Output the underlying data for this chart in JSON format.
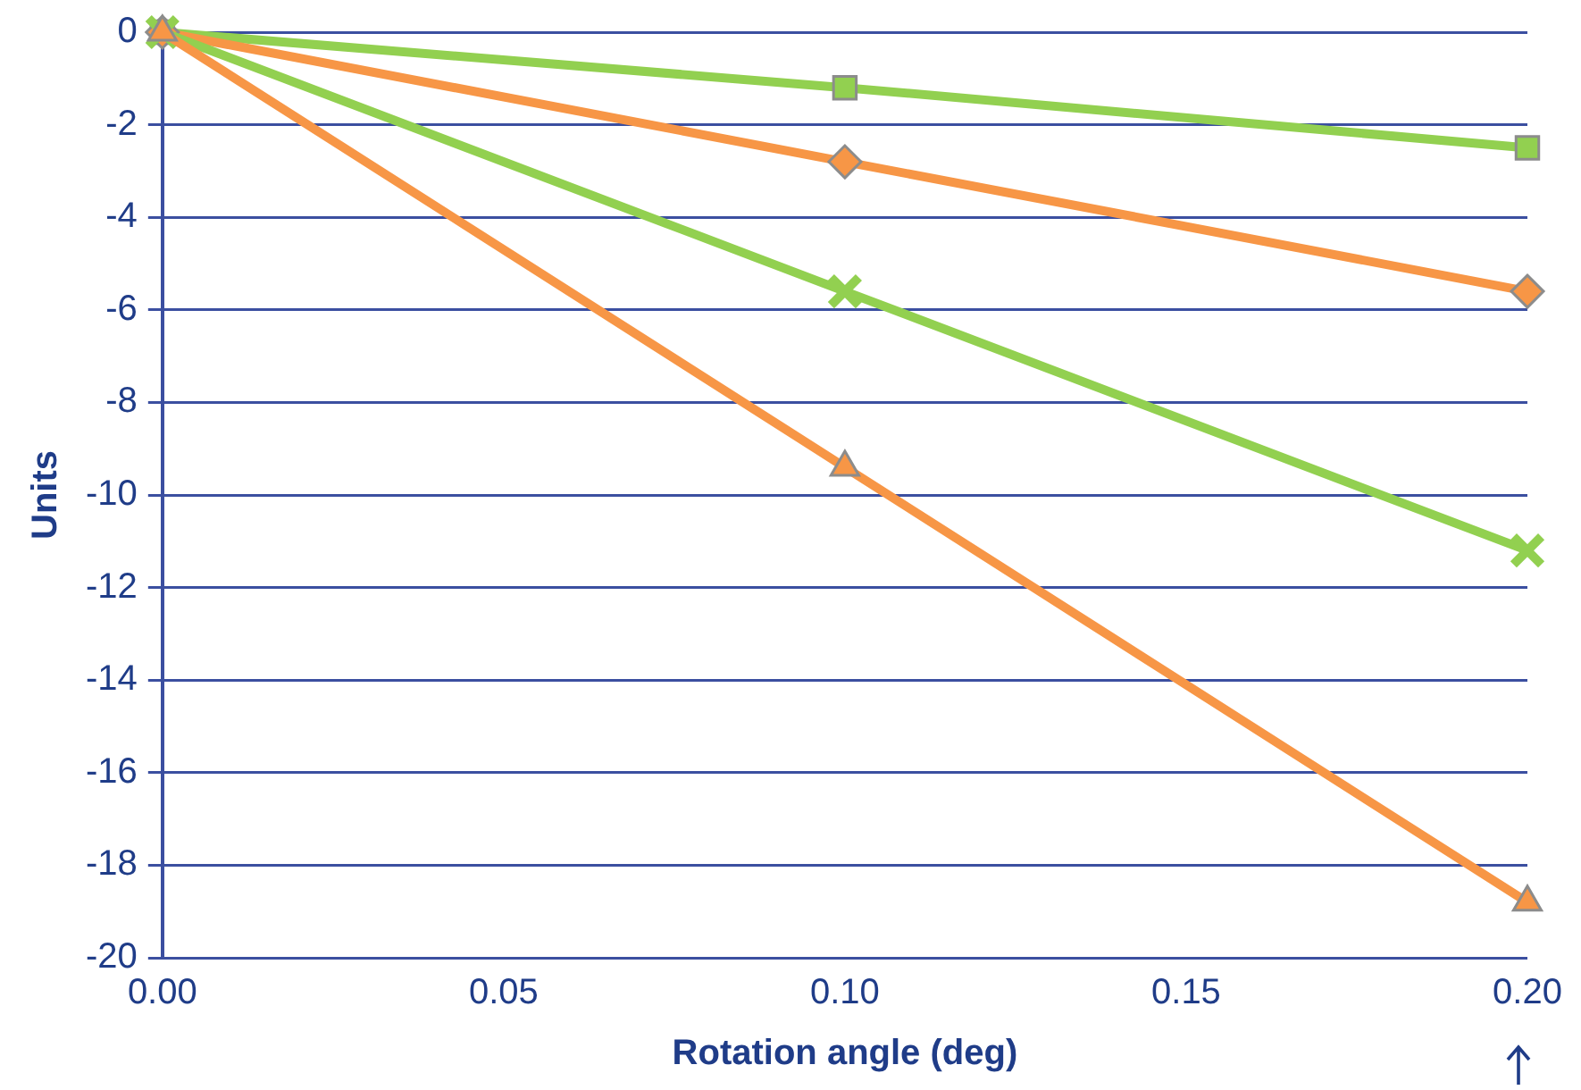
{
  "chart_data": {
    "type": "line",
    "xlabel": "Rotation angle (deg)",
    "ylabel": "Units",
    "x": [
      0,
      0.1,
      0.2
    ],
    "series": [
      {
        "color": "#92d050",
        "marker": "square",
        "values": [
          0,
          -1.2,
          -2.5
        ]
      },
      {
        "color": "#f79646",
        "marker": "diamond",
        "values": [
          0,
          -2.8,
          -5.6
        ]
      },
      {
        "color": "#92d050",
        "marker": "cross",
        "values": [
          0,
          -5.6,
          -11.2
        ]
      },
      {
        "color": "#f79646",
        "marker": "triangle",
        "values": [
          0,
          -9.4,
          -18.8
        ]
      }
    ],
    "xlim": [
      0,
      0.2
    ],
    "xticks": [
      {
        "value": 0,
        "label": "0.00"
      },
      {
        "value": 0.05,
        "label": "0.05"
      },
      {
        "value": 0.1,
        "label": "0.10"
      },
      {
        "value": 0.15,
        "label": "0.15"
      },
      {
        "value": 0.2,
        "label": "0.20"
      }
    ],
    "ylim": [
      -20,
      0
    ],
    "yticks": [
      -20,
      -18,
      -16,
      -14,
      -12,
      -10,
      -8,
      -6,
      -4,
      -2,
      0
    ],
    "grid": "y",
    "legend": false,
    "line_style": "solid"
  }
}
